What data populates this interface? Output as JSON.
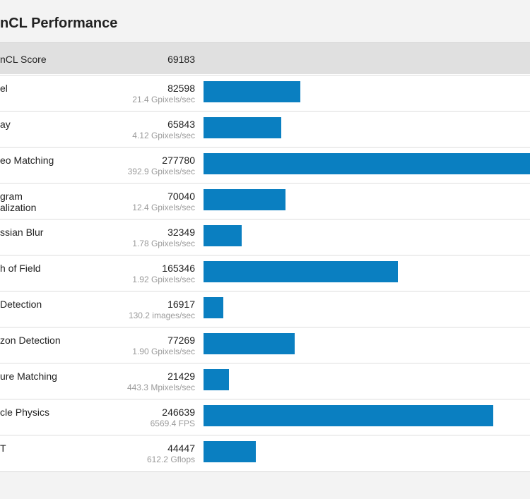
{
  "header": {
    "title": "nCL Performance"
  },
  "summary": {
    "label": "nCL Score",
    "score": 69183
  },
  "rows": [
    {
      "name": "el",
      "score": 82598,
      "rate": "21.4 Gpixels/sec"
    },
    {
      "name": "ay",
      "score": 65843,
      "rate": "4.12 Gpixels/sec"
    },
    {
      "name": "eo Matching",
      "score": 277780,
      "rate": "392.9 Gpixels/sec"
    },
    {
      "name": "gram\nalization",
      "score": 70040,
      "rate": "12.4 Gpixels/sec"
    },
    {
      "name": "ssian Blur",
      "score": 32349,
      "rate": "1.78 Gpixels/sec"
    },
    {
      "name": "h of Field",
      "score": 165346,
      "rate": "1.92 Gpixels/sec"
    },
    {
      "name": "Detection",
      "score": 16917,
      "rate": "130.2 images/sec"
    },
    {
      "name": "zon Detection",
      "score": 77269,
      "rate": "1.90 Gpixels/sec"
    },
    {
      "name": "ure Matching",
      "score": 21429,
      "rate": "443.3 Mpixels/sec"
    },
    {
      "name": "cle Physics",
      "score": 246639,
      "rate": "6569.4 FPS"
    },
    {
      "name": "T",
      "score": 44447,
      "rate": "612.2 Gflops"
    }
  ]
}
